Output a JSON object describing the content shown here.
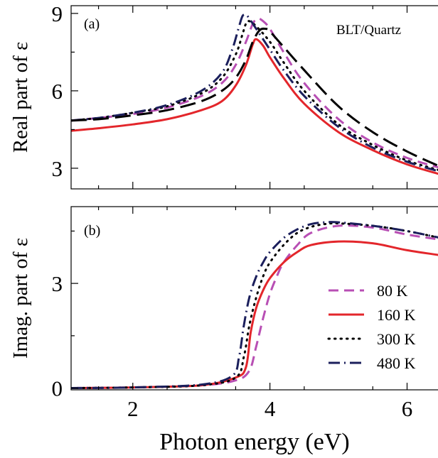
{
  "chart_data": [
    {
      "panel": "(a)",
      "type": "line",
      "annotation": "BLT/Quartz",
      "xlabel": "Photon energy (eV)",
      "ylabel": "Real part of ε",
      "xlim": [
        1.1,
        6.7
      ],
      "ylim": [
        2.2,
        9.3
      ],
      "xticks": [
        2,
        4,
        6
      ],
      "yticks": [
        3,
        6,
        9
      ],
      "grid": false,
      "series": [
        {
          "name": "80 K",
          "color": "#b84fb4",
          "dash": "dashed",
          "x": [
            1.1,
            1.5,
            2.0,
            2.5,
            3.0,
            3.3,
            3.5,
            3.65,
            3.75,
            3.82,
            3.9,
            4.0,
            4.2,
            4.5,
            5.0,
            5.5,
            6.0,
            6.5,
            6.7
          ],
          "y": [
            4.85,
            4.95,
            5.1,
            5.35,
            5.8,
            6.3,
            7.0,
            7.9,
            8.6,
            8.8,
            8.7,
            8.4,
            7.5,
            6.3,
            4.9,
            4.0,
            3.4,
            3.0,
            2.85
          ]
        },
        {
          "name": "160 K",
          "color": "#e3262b",
          "dash": "solid",
          "x": [
            1.1,
            1.5,
            2.0,
            2.5,
            3.0,
            3.3,
            3.5,
            3.65,
            3.75,
            3.8,
            3.9,
            4.0,
            4.2,
            4.5,
            5.0,
            5.5,
            6.0,
            6.5,
            6.7
          ],
          "y": [
            4.45,
            4.55,
            4.7,
            4.9,
            5.25,
            5.6,
            6.2,
            7.0,
            7.8,
            8.0,
            7.75,
            7.3,
            6.5,
            5.5,
            4.4,
            3.7,
            3.15,
            2.75,
            2.6
          ]
        },
        {
          "name": "300 K",
          "color": "#000000",
          "dash": "dotted",
          "x": [
            1.1,
            1.5,
            2.0,
            2.5,
            3.0,
            3.3,
            3.5,
            3.6,
            3.65,
            3.7,
            3.8,
            4.0,
            4.2,
            4.5,
            5.0,
            5.5,
            6.0,
            6.5,
            6.7
          ],
          "y": [
            4.85,
            4.95,
            5.15,
            5.4,
            5.9,
            6.5,
            7.4,
            8.2,
            8.6,
            8.7,
            8.5,
            7.9,
            7.1,
            6.0,
            4.7,
            3.9,
            3.3,
            2.9,
            2.75
          ]
        },
        {
          "name": "480 K",
          "color": "#1b1f5c",
          "dash": "dashdot",
          "x": [
            1.1,
            1.5,
            2.0,
            2.5,
            3.0,
            3.3,
            3.45,
            3.55,
            3.6,
            3.65,
            3.7,
            3.8,
            4.0,
            4.2,
            4.5,
            5.0,
            5.5,
            6.0,
            6.5,
            6.7
          ],
          "y": [
            4.85,
            4.95,
            5.15,
            5.45,
            6.0,
            6.7,
            7.6,
            8.5,
            8.9,
            8.95,
            8.8,
            8.4,
            7.6,
            6.8,
            5.8,
            4.6,
            3.8,
            3.25,
            2.85,
            2.7
          ]
        },
        {
          "name": "",
          "color": "#000000",
          "dash": "longdash",
          "x": [
            1.1,
            1.5,
            2.0,
            2.5,
            3.0,
            3.3,
            3.5,
            3.65,
            3.75,
            3.85,
            3.95,
            4.0,
            4.2,
            4.5,
            5.0,
            5.5,
            6.0,
            6.5,
            6.7
          ],
          "y": [
            4.85,
            4.9,
            5.05,
            5.25,
            5.6,
            6.0,
            6.5,
            7.2,
            7.9,
            8.35,
            8.4,
            8.3,
            7.7,
            6.8,
            5.4,
            4.4,
            3.65,
            3.05,
            2.9
          ]
        }
      ]
    },
    {
      "panel": "(b)",
      "type": "line",
      "xlabel": "Photon energy (eV)",
      "ylabel": "Imag. part of ε",
      "xlim": [
        1.1,
        6.7
      ],
      "ylim": [
        -0.05,
        5.2
      ],
      "xticks": [
        2,
        4,
        6
      ],
      "yticks": [
        0,
        3
      ],
      "grid": false,
      "legend": "center-right",
      "series": [
        {
          "name": "80 K",
          "color": "#b84fb4",
          "dash": "dashed",
          "x": [
            1.1,
            2.0,
            3.0,
            3.5,
            3.7,
            3.8,
            3.9,
            4.0,
            4.1,
            4.2,
            4.4,
            4.6,
            5.0,
            5.5,
            6.0,
            6.5,
            6.7
          ],
          "y": [
            0,
            0.02,
            0.08,
            0.22,
            0.5,
            1.2,
            2.0,
            2.7,
            3.2,
            3.6,
            4.1,
            4.45,
            4.65,
            4.6,
            4.4,
            4.25,
            4.2
          ]
        },
        {
          "name": "160 K",
          "color": "#e3262b",
          "dash": "solid",
          "x": [
            1.1,
            2.0,
            3.0,
            3.5,
            3.65,
            3.72,
            3.8,
            3.9,
            4.0,
            4.2,
            4.4,
            4.6,
            5.0,
            5.5,
            6.0,
            6.5,
            6.7
          ],
          "y": [
            0,
            0.02,
            0.08,
            0.3,
            0.6,
            1.6,
            2.3,
            2.8,
            3.15,
            3.6,
            3.9,
            4.1,
            4.2,
            4.15,
            3.95,
            3.8,
            3.7
          ]
        },
        {
          "name": "300 K",
          "color": "#000000",
          "dash": "dotted",
          "x": [
            1.1,
            2.0,
            3.0,
            3.5,
            3.62,
            3.7,
            3.8,
            3.9,
            4.0,
            4.2,
            4.4,
            4.6,
            4.8,
            5.0,
            5.5,
            6.0,
            6.5,
            6.7
          ],
          "y": [
            0,
            0.02,
            0.08,
            0.3,
            0.9,
            1.8,
            2.6,
            3.2,
            3.6,
            4.1,
            4.45,
            4.62,
            4.7,
            4.72,
            4.65,
            4.5,
            4.3,
            4.25
          ]
        },
        {
          "name": "480 K",
          "color": "#1b1f5c",
          "dash": "dashdot",
          "x": [
            1.1,
            2.0,
            3.0,
            3.45,
            3.55,
            3.62,
            3.7,
            3.8,
            3.9,
            4.0,
            4.2,
            4.4,
            4.6,
            4.8,
            5.0,
            5.5,
            6.0,
            6.5,
            6.7
          ],
          "y": [
            0,
            0.02,
            0.1,
            0.35,
            0.9,
            1.8,
            2.6,
            3.2,
            3.6,
            3.9,
            4.3,
            4.55,
            4.7,
            4.75,
            4.75,
            4.65,
            4.5,
            4.3,
            4.25
          ]
        }
      ]
    }
  ]
}
